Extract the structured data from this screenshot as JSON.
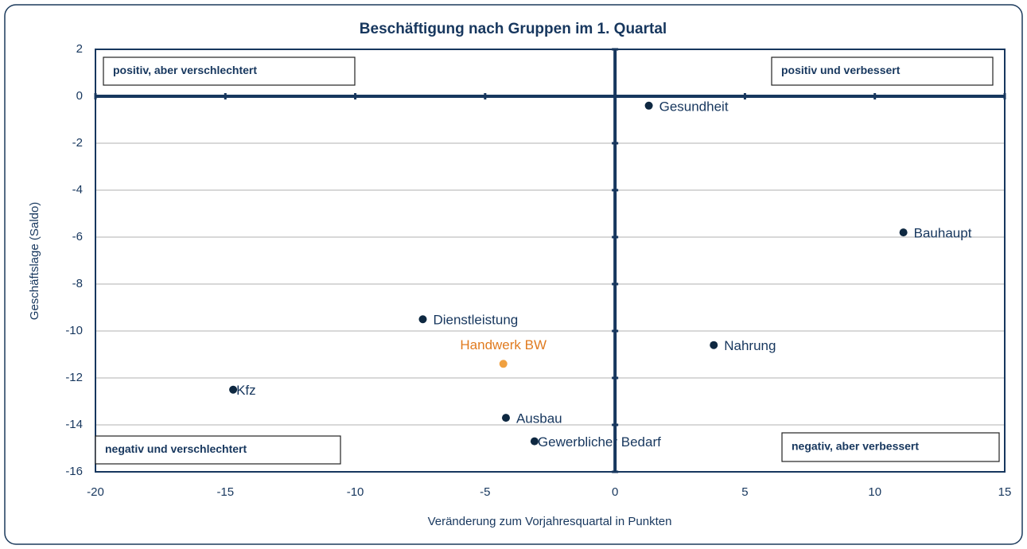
{
  "chart_data": {
    "type": "scatter",
    "title": "Beschäftigung nach Gruppen im 1. Quartal",
    "x_label": "Veränderung zum Vorjahresquartal in Punkten",
    "y_label": "Geschäftslage (Saldo)",
    "series": [
      {
        "labels": [
          "Gesundheit",
          "Bauhaupt",
          "Dienstleistung",
          "Nahrung",
          "Handwerk BW",
          "Kfz",
          "Ausbau",
          "Gewerblicher Bedarf"
        ],
        "x": [
          1.3,
          11.1,
          -7.4,
          3.8,
          -4.3,
          -14.7,
          -4.2,
          -3.1
        ],
        "values": [
          -0.4,
          -5.8,
          -9.5,
          -10.6,
          -11.4,
          -12.5,
          -13.7,
          -14.7
        ],
        "colors": [
          "#0e2841",
          "#0e2841",
          "#0e2841",
          "#0e2841",
          "#f0a040",
          "#0e2841",
          "#0e2841",
          "#0e2841"
        ],
        "label_colors": [
          "#17375e",
          "#17375e",
          "#17375e",
          "#17375e",
          "#e07b20",
          "#17375e",
          "#17375e",
          "#17375e"
        ]
      }
    ],
    "annotations": [
      "positiv, aber verschlechtert",
      "positiv und verbessert",
      "negativ und verschlechtert",
      "negativ, aber verbessert"
    ],
    "xlim": [
      -20,
      15
    ],
    "xticks": [
      -20,
      -15,
      -10,
      -5,
      0,
      5,
      10,
      15
    ],
    "ylim": [
      -16,
      2
    ],
    "yticks": [
      2,
      0,
      -2,
      -4,
      -6,
      -8,
      -10,
      -12,
      -14,
      -16
    ],
    "grid": true
  }
}
